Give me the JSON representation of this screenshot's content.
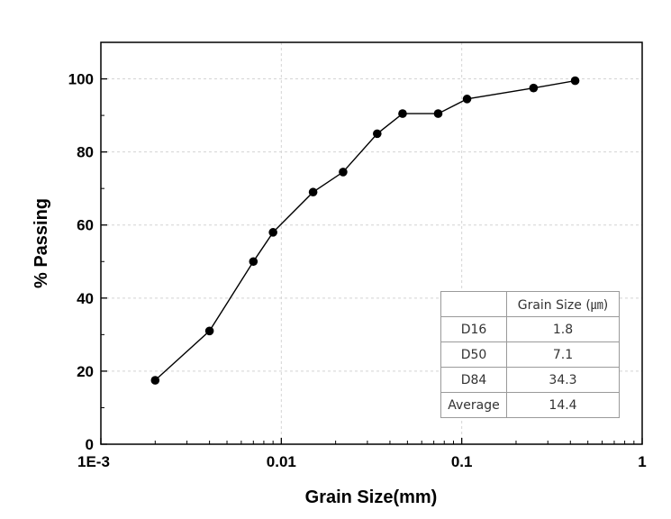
{
  "chart_data": {
    "type": "scatter",
    "mode": "lines+markers",
    "x_scale": "log",
    "xlabel": "Grain Size(mm)",
    "ylabel": "% Passing",
    "xlim": [
      0.001,
      1
    ],
    "ylim": [
      0,
      110
    ],
    "x_tick_labels": [
      "1E-3",
      "0.01",
      "0.1",
      "1"
    ],
    "x_tick_values": [
      0.001,
      0.01,
      0.1,
      1
    ],
    "y_tick_labels": [
      "0",
      "20",
      "40",
      "60",
      "80",
      "100"
    ],
    "y_tick_values": [
      0,
      20,
      40,
      60,
      80,
      100
    ],
    "grid": true,
    "series": [
      {
        "color": "#000000",
        "x": [
          0.002,
          0.004,
          0.007,
          0.009,
          0.015,
          0.022,
          0.034,
          0.047,
          0.074,
          0.107,
          0.25,
          0.425
        ],
        "y": [
          17.5,
          31,
          50,
          58,
          69,
          74.5,
          85,
          90.5,
          90.5,
          94.5,
          97.5,
          99.5
        ]
      }
    ]
  },
  "table": {
    "header": [
      "",
      "Grain Size (㎛)"
    ],
    "rows": [
      [
        "D16",
        "1.8"
      ],
      [
        "D50",
        "7.1"
      ],
      [
        "D84",
        "34.3"
      ],
      [
        "Average",
        "14.4"
      ]
    ]
  }
}
